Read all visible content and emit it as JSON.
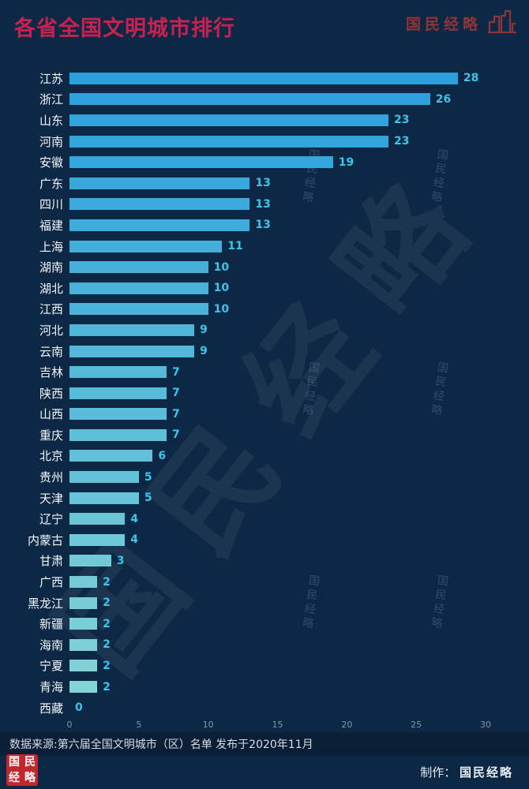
{
  "header": {
    "title": "各省全国文明城市排行",
    "brand": "国民经略"
  },
  "chart_data": {
    "type": "bar",
    "orientation": "horizontal",
    "title": "各省全国文明城市排行",
    "categories": [
      "江苏",
      "浙江",
      "山东",
      "河南",
      "安徽",
      "广东",
      "四川",
      "福建",
      "上海",
      "湖南",
      "湖北",
      "江西",
      "河北",
      "云南",
      "吉林",
      "陕西",
      "山西",
      "重庆",
      "北京",
      "贵州",
      "天津",
      "辽宁",
      "内蒙古",
      "甘肃",
      "广西",
      "黑龙江",
      "新疆",
      "海南",
      "宁夏",
      "青海",
      "西藏"
    ],
    "values": [
      28,
      26,
      23,
      23,
      19,
      13,
      13,
      13,
      11,
      10,
      10,
      10,
      9,
      9,
      7,
      7,
      7,
      7,
      6,
      5,
      5,
      4,
      4,
      3,
      2,
      2,
      2,
      2,
      2,
      2,
      0
    ],
    "xticks": [
      0,
      5,
      10,
      15,
      20,
      25,
      30
    ],
    "xlim": [
      0,
      30
    ],
    "grid": false,
    "legend": "none",
    "bar_color_start": "#2aa0dd",
    "bar_color_end": "#86d6d5",
    "value_label_color": "#3cc5ea",
    "category_label_color": "#f2f6fa"
  },
  "watermark": {
    "large_text": "国民经略",
    "small_text": "国民经略"
  },
  "footer": {
    "source": "数据来源:第六届全国文明城市（区）名单 发布于2020年11月",
    "credit_label": "制作：",
    "credit_value": "国民经略",
    "seal_chars": [
      "国",
      "民",
      "经",
      "略"
    ]
  },
  "colors": {
    "background": "#0d2845",
    "title": "#c7224f",
    "brand": "#8e3538",
    "source_bar": "#0a1e36",
    "seal_red": "#c1272d",
    "tick_label": "#8096ab"
  }
}
